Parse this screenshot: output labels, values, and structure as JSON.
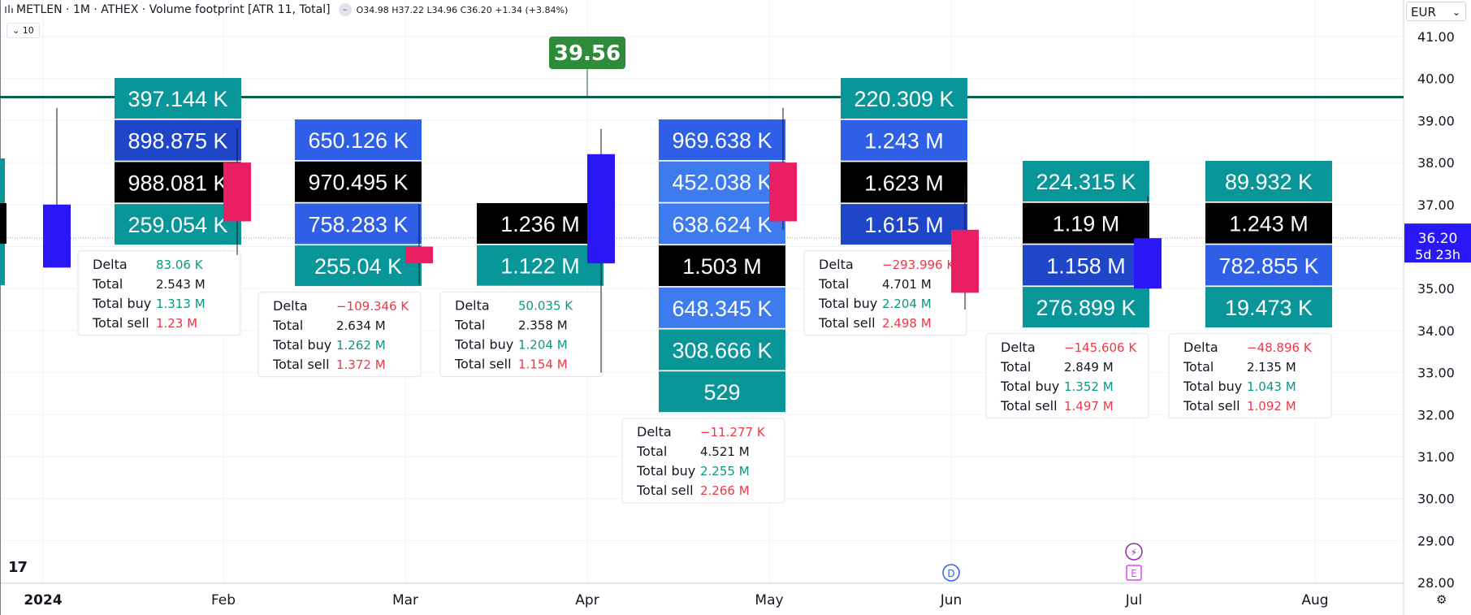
{
  "header": {
    "title": "METLEN · 1M · ATHEX · Volume footprint [ATR 11, Total]",
    "ohlc": "O34.98 H37.22 L34.96 C36.20 +1.34 (+3.84%)",
    "collapse_label": "10",
    "currency": "EUR"
  },
  "colors": {
    "up_candle": "#2a17f5",
    "down_candle": "#e91e63",
    "teal_cell": "#089699",
    "blue_cell": "#2e5fe6",
    "dark_blue_cell": "#1f46c9",
    "black_cell": "#000000",
    "positive": "#089981",
    "negative": "#f23645",
    "line": "#0b5e4b",
    "price_badge": "#2a17f5"
  },
  "chart_data": {
    "type": "volume-footprint",
    "x_ticks": [
      "2024",
      "Feb",
      "Mar",
      "Apr",
      "May",
      "Jun",
      "Jul",
      "Aug"
    ],
    "y_ticks": [
      "41.00",
      "40.00",
      "39.00",
      "38.00",
      "37.00",
      "36.00",
      "35.00",
      "34.00",
      "33.00",
      "32.00",
      "31.00",
      "30.00",
      "29.00",
      "28.00"
    ],
    "ylim": [
      28,
      41.5
    ],
    "horizontal_line": 39.56,
    "horizontal_line_label": "39.56",
    "last_price": "36.20",
    "countdown": "5d 23h",
    "candles": [
      {
        "month": "2024",
        "open": 35.5,
        "high": 39.3,
        "low": 35.5,
        "close": 37.0,
        "dir": "up",
        "cells": [
          {
            "text": "397.144 K",
            "color": "teal"
          },
          {
            "text": "898.875 K",
            "color": "dark"
          },
          {
            "text": "988.081 K",
            "color": "black"
          },
          {
            "text": "259.054 K",
            "color": "teal"
          }
        ],
        "summary": {
          "delta": "83.06 K",
          "total": "2.543 M",
          "buy": "1.313 M",
          "sell": "1.23 M",
          "delta_sign": "pos"
        }
      },
      {
        "month": "Feb",
        "open": 38.0,
        "high": 38.8,
        "low": 35.8,
        "close": 36.6,
        "dir": "down",
        "cells": [
          {
            "text": "650.126 K",
            "color": "blue"
          },
          {
            "text": "970.495 K",
            "color": "black"
          },
          {
            "text": "758.283 K",
            "color": "blue"
          },
          {
            "text": "255.04 K",
            "color": "teal"
          }
        ],
        "summary": {
          "delta": "−109.346 K",
          "total": "2.634 M",
          "buy": "1.262 M",
          "sell": "1.372 M",
          "delta_sign": "neg"
        }
      },
      {
        "month": "Mar",
        "open": 36.0,
        "high": 37.0,
        "low": 35.1,
        "close": 35.6,
        "dir": "down",
        "cells": [
          {
            "text": "1.236 M",
            "color": "black"
          },
          {
            "text": "1.122 M",
            "color": "teal"
          }
        ],
        "summary": {
          "delta": "50.035 K",
          "total": "2.358 M",
          "buy": "1.204 M",
          "sell": "1.154 M",
          "delta_sign": "pos"
        }
      },
      {
        "month": "Apr",
        "open": 35.6,
        "high": 38.8,
        "low": 33.0,
        "close": 38.2,
        "dir": "up",
        "cells": [
          {
            "text": "969.638 K",
            "color": "blue"
          },
          {
            "text": "452.038 K",
            "color": "blue2"
          },
          {
            "text": "638.624 K",
            "color": "blue2"
          },
          {
            "text": "1.503 M",
            "color": "black"
          },
          {
            "text": "648.345 K",
            "color": "blue2"
          },
          {
            "text": "308.666 K",
            "color": "teal"
          },
          {
            "text": "529",
            "color": "teal"
          }
        ],
        "summary": {
          "delta": "−11.277 K",
          "total": "4.521 M",
          "buy": "2.255 M",
          "sell": "2.266 M",
          "delta_sign": "neg"
        }
      },
      {
        "month": "May",
        "open": 38.0,
        "high": 39.3,
        "low": 36.4,
        "close": 36.6,
        "dir": "down",
        "cells": [
          {
            "text": "220.309 K",
            "color": "teal"
          },
          {
            "text": "1.243 M",
            "color": "blue"
          },
          {
            "text": "1.623 M",
            "color": "black"
          },
          {
            "text": "1.615 M",
            "color": "dark"
          }
        ],
        "summary": {
          "delta": "−293.996 K",
          "total": "4.701 M",
          "buy": "2.204 M",
          "sell": "2.498 M",
          "delta_sign": "neg"
        }
      },
      {
        "month": "Jun",
        "open": 36.4,
        "high": 37.5,
        "low": 34.5,
        "close": 34.9,
        "dir": "down",
        "cells": [
          {
            "text": "224.315 K",
            "color": "teal"
          },
          {
            "text": "1.19 M",
            "color": "black"
          },
          {
            "text": "1.158 M",
            "color": "dark"
          },
          {
            "text": "276.899 K",
            "color": "teal"
          }
        ],
        "summary": {
          "delta": "−145.606 K",
          "total": "2.849 M",
          "buy": "1.352 M",
          "sell": "1.497 M",
          "delta_sign": "neg"
        }
      },
      {
        "month": "Jul",
        "open": 35.0,
        "high": 37.2,
        "low": 35.0,
        "close": 36.2,
        "dir": "up",
        "cells": [
          {
            "text": "89.932 K",
            "color": "teal"
          },
          {
            "text": "1.243 M",
            "color": "black"
          },
          {
            "text": "782.855 K",
            "color": "blue"
          },
          {
            "text": "19.473 K",
            "color": "teal"
          }
        ],
        "summary": {
          "delta": "−48.896 K",
          "total": "2.135 M",
          "buy": "1.043 M",
          "sell": "1.092 M",
          "delta_sign": "neg"
        }
      }
    ],
    "summary_labels": {
      "delta": "Delta",
      "total": "Total",
      "buy": "Total buy",
      "sell": "Total sell"
    },
    "event_markers": [
      {
        "month": "Jun",
        "label": "D"
      },
      {
        "month": "Jul",
        "label": "E"
      }
    ]
  }
}
